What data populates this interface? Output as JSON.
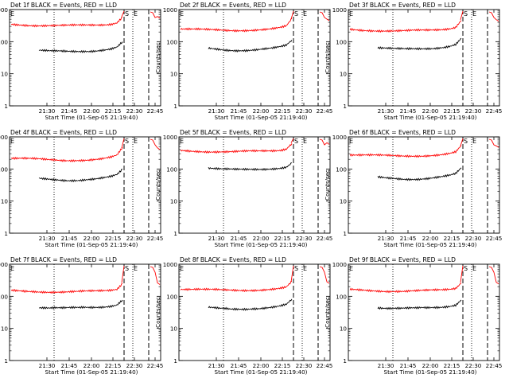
{
  "chart_data": [
    {
      "type": "line",
      "title": "Det 1f BLACK = Events, RED = LLD",
      "xlabel": "Start Time (01-Sep-05 21:19:40)",
      "ylabel": "Counts/sec",
      "scale": "log",
      "ylim": [
        1,
        1000
      ],
      "yticks": [
        "1",
        "10",
        "100",
        "1000"
      ],
      "xtick_labels": [
        "21:30",
        "21:45",
        "22:00",
        "22:15",
        "22:30",
        "22:45"
      ],
      "markers": [
        "S",
        "E"
      ],
      "series": [
        {
          "color": "#ff0000",
          "values": [
            350,
            340,
            335,
            330,
            325,
            322,
            320,
            318,
            316,
            315,
            316,
            318,
            320,
            322,
            325,
            330,
            335,
            345,
            360,
            400,
            600
          ]
        },
        {
          "color": "#000000",
          "values": [
            null,
            null,
            null,
            null,
            null,
            55,
            53,
            51,
            50,
            49,
            48,
            48,
            48,
            49,
            50,
            52,
            55,
            58,
            62,
            70,
            100
          ]
        }
      ]
    },
    {
      "type": "line",
      "title": "Det 2f BLACK = Events, RED = LLD",
      "xlabel": "Start Time (01-Sep-05 21:19:40)",
      "ylabel": "Counts/sec",
      "scale": "log",
      "ylim": [
        1,
        1000
      ],
      "yticks": [
        "1",
        "10",
        "100",
        "1000"
      ],
      "xtick_labels": [
        "21:30",
        "21:45",
        "22:00",
        "22:15",
        "22:30",
        "22:45"
      ],
      "markers": [
        "S",
        "E"
      ],
      "series": [
        {
          "color": "#ff0000",
          "values": [
            250,
            245,
            240,
            238,
            235,
            232,
            230,
            228,
            226,
            225,
            226,
            228,
            230,
            232,
            235,
            240,
            245,
            255,
            270,
            300,
            500
          ]
        },
        {
          "color": "#000000",
          "values": [
            null,
            null,
            null,
            null,
            null,
            62,
            60,
            58,
            56,
            55,
            54,
            54,
            54,
            55,
            56,
            58,
            60,
            63,
            68,
            76,
            110
          ]
        }
      ]
    },
    {
      "type": "line",
      "title": "Det 3f BLACK = Events, RED = LLD",
      "xlabel": "Start Time (01-Sep-05 21:19:40)",
      "ylabel": "Counts/sec",
      "scale": "log",
      "ylim": [
        1,
        1000
      ],
      "yticks": [
        "1",
        "10",
        "100",
        "1000"
      ],
      "xtick_labels": [
        "21:30",
        "21:45",
        "22:00",
        "22:15",
        "22:30",
        "22:45"
      ],
      "markers": [
        "S",
        "E"
      ],
      "series": [
        {
          "color": "#ff0000",
          "values": [
            240,
            235,
            230,
            228,
            225,
            222,
            220,
            218,
            216,
            215,
            216,
            218,
            220,
            222,
            225,
            230,
            235,
            245,
            260,
            290,
            480
          ]
        },
        {
          "color": "#000000",
          "values": [
            null,
            null,
            null,
            null,
            null,
            66,
            64,
            62,
            60,
            59,
            58,
            58,
            58,
            59,
            60,
            62,
            65,
            69,
            75,
            85,
            130
          ]
        }
      ]
    },
    {
      "type": "line",
      "title": "Det 4f BLACK = Events, RED = LLD",
      "xlabel": "Start Time (01-Sep-05 21:19:40)",
      "ylabel": "Counts/sec",
      "scale": "log",
      "ylim": [
        1,
        1000
      ],
      "yticks": [
        "1",
        "10",
        "100",
        "1000"
      ],
      "xtick_labels": [
        "21:30",
        "21:45",
        "22:00",
        "22:15",
        "22:30",
        "22:45"
      ],
      "markers": [
        "S",
        "E"
      ],
      "series": [
        {
          "color": "#ff0000",
          "values": [
            220,
            215,
            212,
            208,
            205,
            200,
            195,
            190,
            188,
            186,
            186,
            188,
            190,
            192,
            195,
            200,
            205,
            215,
            230,
            260,
            450
          ]
        },
        {
          "color": "#000000",
          "values": [
            null,
            null,
            null,
            null,
            null,
            50,
            49,
            48,
            47,
            46,
            45,
            45,
            45,
            46,
            47,
            48,
            50,
            53,
            57,
            65,
            95
          ]
        }
      ]
    },
    {
      "type": "line",
      "title": "Det 5f BLACK = Events, RED = LLD",
      "xlabel": "Start Time (01-Sep-05 21:19:40)",
      "ylabel": "Counts/sec",
      "scale": "log",
      "ylim": [
        1,
        1000
      ],
      "yticks": [
        "1",
        "10",
        "100",
        "1000"
      ],
      "xtick_labels": [
        "21:30",
        "21:45",
        "22:00",
        "22:15",
        "22:30",
        "22:45"
      ],
      "markers": [
        "S",
        "E"
      ],
      "series": [
        {
          "color": "#ff0000",
          "values": [
            370,
            365,
            360,
            358,
            355,
            352,
            350,
            348,
            346,
            345,
            346,
            348,
            350,
            352,
            355,
            360,
            365,
            375,
            390,
            430,
            650
          ]
        },
        {
          "color": "#000000",
          "values": [
            null,
            null,
            null,
            null,
            null,
            110,
            106,
            102,
            99,
            97,
            95,
            94,
            94,
            95,
            96,
            98,
            101,
            105,
            110,
            118,
            160
          ]
        }
      ]
    },
    {
      "type": "line",
      "title": "Det 6f BLACK = Events, RED = LLD",
      "xlabel": "Start Time (01-Sep-05 21:19:40)",
      "ylabel": "Counts/sec",
      "scale": "log",
      "ylim": [
        1,
        1000
      ],
      "yticks": [
        "1",
        "10",
        "100",
        "1000"
      ],
      "xtick_labels": [
        "21:30",
        "21:45",
        "22:00",
        "22:15",
        "22:30",
        "22:45"
      ],
      "markers": [
        "S",
        "E"
      ],
      "series": [
        {
          "color": "#ff0000",
          "values": [
            280,
            275,
            272,
            268,
            265,
            262,
            260,
            258,
            256,
            255,
            256,
            258,
            260,
            262,
            265,
            270,
            275,
            285,
            300,
            330,
            520
          ]
        },
        {
          "color": "#000000",
          "values": [
            null,
            null,
            null,
            null,
            null,
            55,
            53,
            52,
            51,
            50,
            49,
            49,
            49,
            50,
            51,
            53,
            55,
            58,
            62,
            70,
            105
          ]
        }
      ]
    },
    {
      "type": "line",
      "title": "Det 7f BLACK = Events, RED = LLD",
      "xlabel": "Start Time (01-Sep-05 21:19:40)",
      "ylabel": "Counts/sec",
      "scale": "log",
      "ylim": [
        1,
        1000
      ],
      "yticks": [
        "1",
        "10",
        "100",
        "1000"
      ],
      "xtick_labels": [
        "21:30",
        "21:45",
        "22:00",
        "22:15",
        "22:30",
        "22:45"
      ],
      "markers": [
        "S",
        "E"
      ],
      "series": [
        {
          "color": "#ff0000",
          "values": [
            150,
            148,
            146,
            145,
            144,
            142,
            140,
            138,
            137,
            136,
            136,
            137,
            138,
            140,
            142,
            145,
            148,
            152,
            158,
            170,
            260
          ]
        },
        {
          "color": "#000000",
          "values": [
            null,
            null,
            null,
            null,
            null,
            46,
            45,
            44,
            44,
            43,
            43,
            43,
            43,
            44,
            44,
            45,
            46,
            48,
            51,
            56,
            80
          ]
        }
      ]
    },
    {
      "type": "line",
      "title": "Det 8f BLACK = Events, RED = LLD",
      "xlabel": "Start Time (01-Sep-05 21:19:40)",
      "ylabel": "Counts/sec",
      "scale": "log",
      "ylim": [
        1,
        1000
      ],
      "yticks": [
        "1",
        "10",
        "100",
        "1000"
      ],
      "xtick_labels": [
        "21:30",
        "21:45",
        "22:00",
        "22:15",
        "22:30",
        "22:45"
      ],
      "markers": [
        "S",
        "E"
      ],
      "series": [
        {
          "color": "#ff0000",
          "values": [
            170,
            168,
            166,
            164,
            162,
            160,
            158,
            156,
            155,
            154,
            154,
            155,
            156,
            158,
            160,
            163,
            166,
            170,
            178,
            190,
            280
          ]
        },
        {
          "color": "#000000",
          "values": [
            null,
            null,
            null,
            null,
            null,
            44,
            43,
            42,
            42,
            41,
            41,
            41,
            41,
            42,
            42,
            43,
            44,
            46,
            49,
            54,
            78
          ]
        }
      ]
    },
    {
      "type": "line",
      "title": "Det 9f BLACK = Events, RED = LLD",
      "xlabel": "Start Time (01-Sep-05 21:19:40)",
      "ylabel": "Counts/sec",
      "scale": "log",
      "ylim": [
        1,
        1000
      ],
      "yticks": [
        "1",
        "10",
        "100",
        "1000"
      ],
      "xtick_labels": [
        "21:30",
        "21:45",
        "22:00",
        "22:15",
        "22:30",
        "22:45"
      ],
      "markers": [
        "S",
        "E"
      ],
      "series": [
        {
          "color": "#ff0000",
          "values": [
            160,
            158,
            156,
            154,
            152,
            150,
            148,
            146,
            145,
            144,
            144,
            145,
            146,
            148,
            150,
            153,
            156,
            160,
            168,
            180,
            270
          ]
        },
        {
          "color": "#000000",
          "values": [
            null,
            null,
            null,
            null,
            null,
            45,
            44,
            43,
            43,
            42,
            42,
            42,
            42,
            43,
            43,
            44,
            45,
            47,
            50,
            55,
            80
          ]
        }
      ]
    }
  ]
}
